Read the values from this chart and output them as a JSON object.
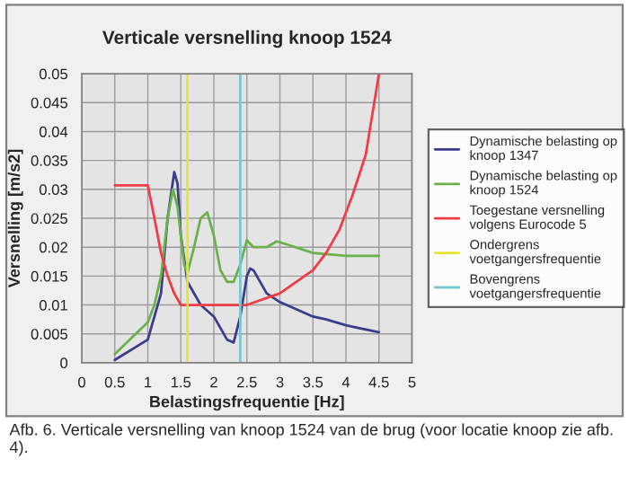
{
  "chart_data": {
    "type": "line",
    "title": "Verticale versnelling knoop 1524",
    "xlabel": "Belastingsfrequentie [Hz]",
    "ylabel": "Versnelling [m/s2]",
    "xlim": [
      0,
      5
    ],
    "xticks": [
      0,
      0.5,
      1,
      1.5,
      2,
      2.5,
      3,
      3.5,
      4,
      4.5,
      5
    ],
    "ylim": [
      0,
      0.05
    ],
    "yticks": [
      0,
      0.005,
      0.01,
      0.015,
      0.02,
      0.025,
      0.03,
      0.035,
      0.04,
      0.045,
      0.05
    ],
    "grid": true,
    "legend": "right",
    "marker": "none",
    "line_style": "solid",
    "series": [
      {
        "name": "Dynamische belasting op knoop 1347",
        "color": "#3c3c8c",
        "x": [
          0.5,
          1.0,
          1.2,
          1.3,
          1.4,
          1.45,
          1.5,
          1.6,
          1.8,
          2.0,
          2.2,
          2.3,
          2.4,
          2.5,
          2.55,
          2.6,
          2.8,
          3.0,
          3.5,
          3.7,
          4.0,
          4.2,
          4.5
        ],
        "values": [
          0.0005,
          0.004,
          0.012,
          0.025,
          0.033,
          0.031,
          0.022,
          0.014,
          0.01,
          0.008,
          0.004,
          0.0035,
          0.008,
          0.015,
          0.0163,
          0.016,
          0.012,
          0.0105,
          0.008,
          0.0075,
          0.0065,
          0.006,
          0.0053
        ]
      },
      {
        "name": "Dynamische belasting op knoop 1524",
        "color": "#6ab04c",
        "x": [
          0.5,
          1.0,
          1.1,
          1.2,
          1.3,
          1.38,
          1.45,
          1.55,
          1.6,
          1.7,
          1.8,
          1.9,
          2.0,
          2.1,
          2.2,
          2.3,
          2.4,
          2.5,
          2.6,
          2.8,
          2.95,
          3.1,
          3.5,
          4.0,
          4.5
        ],
        "values": [
          0.0015,
          0.007,
          0.01,
          0.015,
          0.025,
          0.03,
          0.027,
          0.017,
          0.0155,
          0.02,
          0.025,
          0.026,
          0.022,
          0.016,
          0.014,
          0.014,
          0.017,
          0.0212,
          0.02,
          0.02,
          0.021,
          0.0205,
          0.019,
          0.0185,
          0.0185
        ]
      },
      {
        "name": "Toegestane versnelling volgens Eurocode 5",
        "color": "#f03c46",
        "x": [
          0.5,
          1.0,
          1.1,
          1.2,
          1.3,
          1.4,
          1.5,
          2.5,
          3.0,
          3.5,
          3.7,
          3.9,
          4.1,
          4.3,
          4.5
        ],
        "values": [
          0.0307,
          0.0307,
          0.025,
          0.019,
          0.015,
          0.012,
          0.01,
          0.01,
          0.012,
          0.016,
          0.019,
          0.023,
          0.029,
          0.036,
          0.05
        ]
      },
      {
        "name": "Ondergrens voetgangersfrequentie",
        "color": "#e6e632",
        "x": [
          1.6,
          1.6
        ],
        "values": [
          0,
          0.05
        ]
      },
      {
        "name": "Bovengrens voetgangersfrequentie",
        "color": "#78c8d2",
        "x": [
          2.4,
          2.4
        ],
        "values": [
          0,
          0.05
        ]
      }
    ],
    "annotations": [
      "Afb. 6. Verticale versnelling van knoop 1524 van de brug (voor locatie knoop zie afb. 4)."
    ]
  }
}
